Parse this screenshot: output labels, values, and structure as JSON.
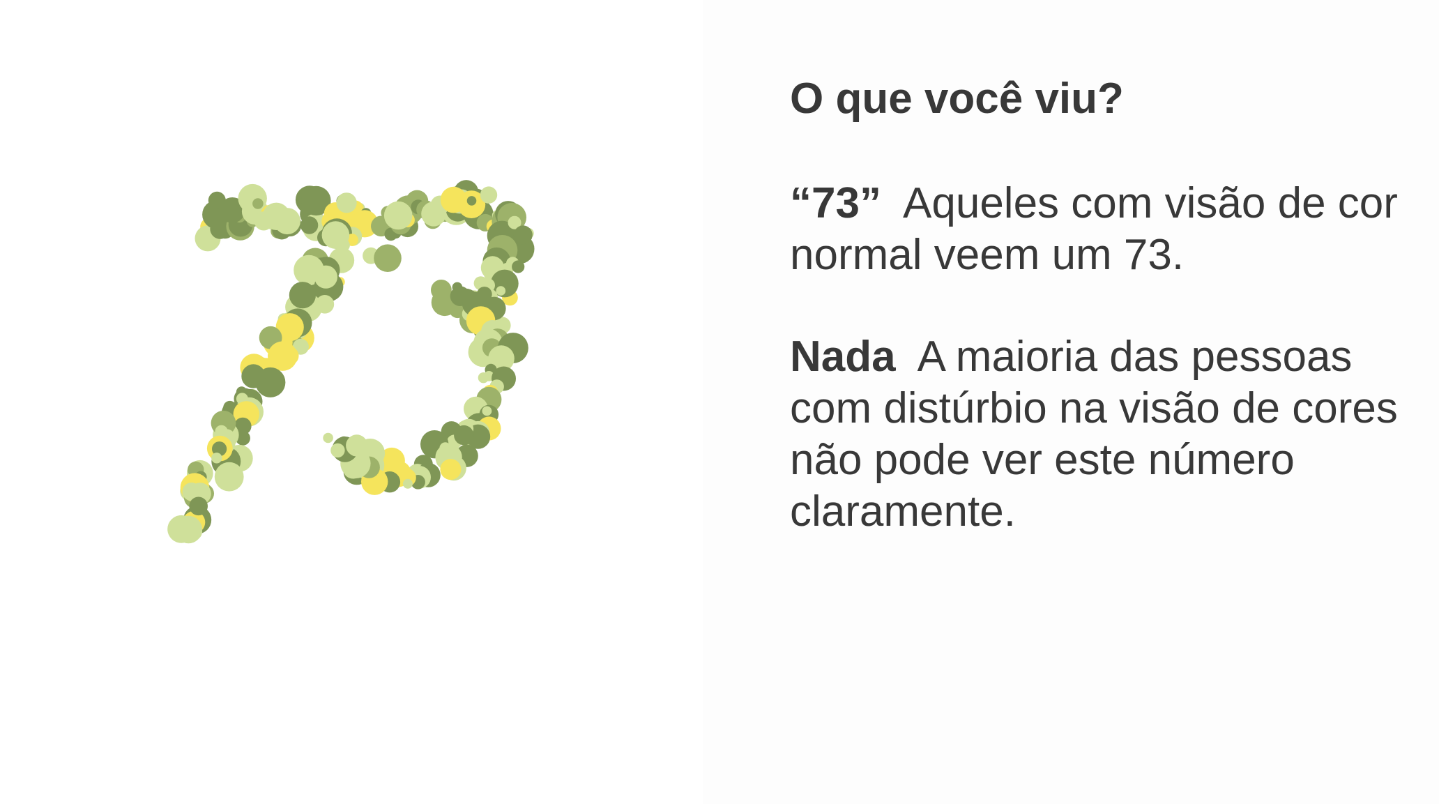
{
  "slide": {
    "question": "O que você viu?",
    "answers": [
      {
        "label": "“73”",
        "text": "Aqueles com visão de cor normal veem um 73."
      },
      {
        "label": "Nada",
        "text": "A maioria das pessoas com distúrbio na visão de cores não pode ver este número claramente."
      }
    ]
  },
  "plate": {
    "hidden_number": "73",
    "colors": {
      "light_green": "#cfe09a",
      "mid_green": "#9db26a",
      "dark_green": "#7f9656",
      "yellow": "#f5e45c"
    }
  },
  "colors": {
    "text": "#383838",
    "background": "#ffffff"
  }
}
